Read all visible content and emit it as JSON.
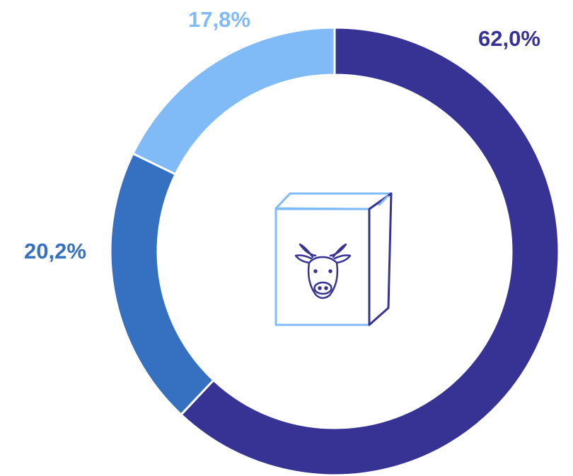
{
  "chart_data": {
    "type": "donut",
    "values": [
      62.0,
      20.2,
      17.8
    ],
    "value_labels": [
      "62,0%",
      "20,2%",
      "17,8%"
    ],
    "colors": [
      "#363394",
      "#3571c0",
      "#80bbf8"
    ]
  }
}
